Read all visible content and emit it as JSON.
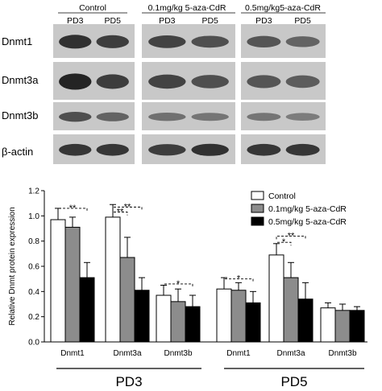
{
  "blot": {
    "groups": [
      {
        "header": "Control",
        "lanes": [
          "PD3",
          "PD5"
        ]
      },
      {
        "header": "0.1mg/kg 5-aza-CdR",
        "lanes": [
          "PD3",
          "PD5"
        ]
      },
      {
        "header": "0.5mg/kg5-aza-CdR",
        "lanes": [
          "PD3",
          "PD5"
        ]
      }
    ],
    "rows": [
      "Dnmt1",
      "Dnmt3a",
      "Dnmt3b",
      "β-actin"
    ],
    "band_intensity": [
      [
        [
          0.85,
          0.75
        ],
        [
          0.7,
          0.6
        ],
        [
          0.55,
          0.45
        ]
      ],
      [
        [
          0.95,
          0.75
        ],
        [
          0.7,
          0.6
        ],
        [
          0.55,
          0.5
        ]
      ],
      [
        [
          0.6,
          0.45
        ],
        [
          0.35,
          0.3
        ],
        [
          0.3,
          0.25
        ]
      ],
      [
        [
          0.8,
          0.8
        ],
        [
          0.75,
          0.85
        ],
        [
          0.8,
          0.8
        ]
      ]
    ],
    "colors": {
      "panel_bg": "#c8c8c8",
      "band": "#141414"
    }
  },
  "chart_data": {
    "type": "bar",
    "ylabel": "Relative Dnmt protein expression",
    "ylim": [
      0,
      1.2
    ],
    "yticks": [
      "0.0",
      "0.2",
      "0.4",
      "0.6",
      "0.8",
      "1.0",
      "1.2"
    ],
    "categories": [
      "Dnmt1",
      "Dnmt3a",
      "Dnmt3b",
      "Dnmt1",
      "Dnmt3a",
      "Dnmt3b"
    ],
    "groups": [
      {
        "label": "PD3",
        "categories": [
          0,
          1,
          2
        ]
      },
      {
        "label": "PD5",
        "categories": [
          3,
          4,
          5
        ]
      }
    ],
    "series": [
      {
        "name": "Control",
        "color": "#ffffff",
        "values": [
          0.97,
          0.99,
          0.37,
          0.42,
          0.69,
          0.27
        ],
        "errors": [
          0.09,
          0.1,
          0.08,
          0.09,
          0.09,
          0.04
        ]
      },
      {
        "name": "0.1mg/kg 5-aza-CdR",
        "color": "#8c8c8c",
        "values": [
          0.91,
          0.67,
          0.32,
          0.41,
          0.51,
          0.25
        ],
        "errors": [
          0.08,
          0.16,
          0.1,
          0.06,
          0.12,
          0.05
        ]
      },
      {
        "name": "0.5mg/kg 5-aza-CdR",
        "color": "#000000",
        "values": [
          0.51,
          0.41,
          0.28,
          0.31,
          0.34,
          0.25
        ],
        "errors": [
          0.12,
          0.1,
          0.09,
          0.09,
          0.13,
          0.03
        ]
      }
    ],
    "significance": [
      {
        "category": 0,
        "from": 0,
        "to": 2,
        "label": "**",
        "level": 1.06
      },
      {
        "category": 1,
        "from": 0,
        "to": 1,
        "label": "**",
        "level": 1.03
      },
      {
        "category": 1,
        "from": 0,
        "to": 2,
        "label": "**",
        "level": 1.07
      },
      {
        "category": 2,
        "from": 0,
        "to": 2,
        "label": "*",
        "level": 0.46
      },
      {
        "category": 3,
        "from": 0,
        "to": 2,
        "label": "*",
        "level": 0.5
      },
      {
        "category": 4,
        "from": 0,
        "to": 1,
        "label": "*",
        "level": 0.79
      },
      {
        "category": 4,
        "from": 0,
        "to": 2,
        "label": "**",
        "level": 0.84
      }
    ],
    "legend": "top-right",
    "grid": false
  }
}
